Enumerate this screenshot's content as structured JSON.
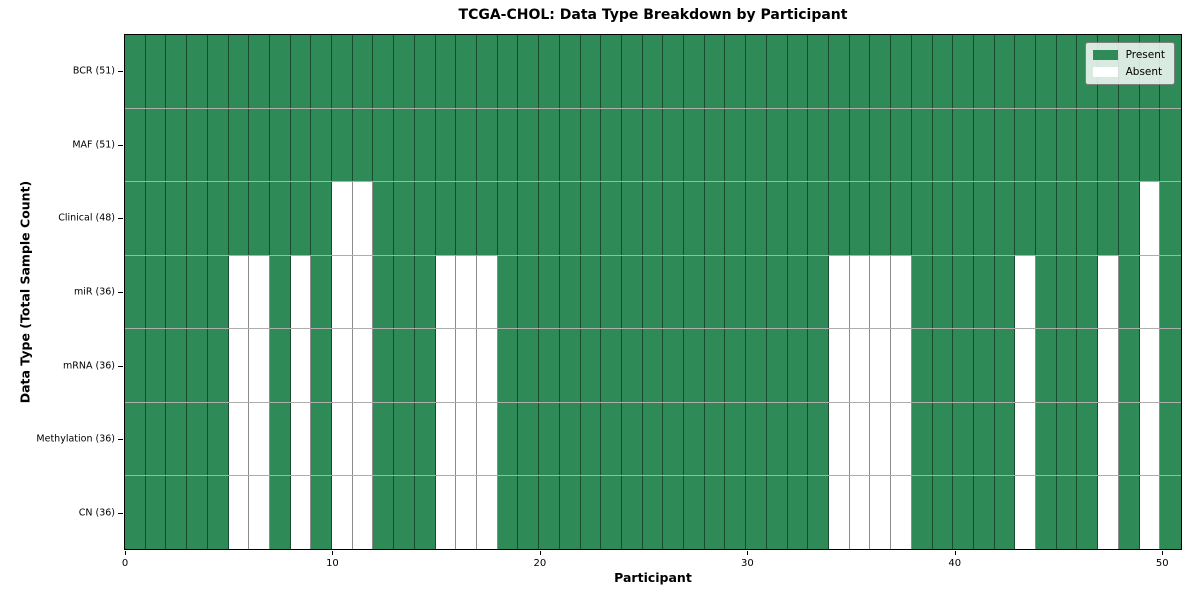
{
  "title": "TCGA-CHOL: Data Type Breakdown by Participant",
  "legend": {
    "present_label": "Present",
    "absent_label": "Absent"
  },
  "axes": {
    "x_label": "Participant",
    "y_label": "Data Type (Total Sample Count)"
  },
  "chart_data": {
    "type": "heatmap",
    "title": "TCGA-CHOL: Data Type Breakdown by Participant",
    "xlabel": "Participant",
    "ylabel": "Data Type (Total Sample Count)",
    "x_range": [
      0,
      51
    ],
    "x_ticks": [
      0,
      10,
      20,
      30,
      40,
      50
    ],
    "n_participants": 51,
    "grid": true,
    "legend_entries": [
      "Present",
      "Absent"
    ],
    "legend_position": "upper right",
    "colors": {
      "present": "#2e8b57",
      "absent": "#ffffff"
    },
    "rows": [
      {
        "label": "BCR (51)",
        "present_count": 51,
        "absent_participants": []
      },
      {
        "label": "MAF (51)",
        "present_count": 51,
        "absent_participants": []
      },
      {
        "label": "Clinical (48)",
        "present_count": 48,
        "absent_participants": [
          10,
          11,
          49
        ]
      },
      {
        "label": "miR (36)",
        "present_count": 36,
        "absent_participants": [
          5,
          6,
          8,
          10,
          11,
          15,
          16,
          17,
          34,
          35,
          36,
          37,
          43,
          47,
          49
        ]
      },
      {
        "label": "mRNA (36)",
        "present_count": 36,
        "absent_participants": [
          5,
          6,
          8,
          10,
          11,
          15,
          16,
          17,
          34,
          35,
          36,
          37,
          43,
          47,
          49
        ]
      },
      {
        "label": "Methylation (36)",
        "present_count": 36,
        "absent_participants": [
          5,
          6,
          8,
          10,
          11,
          15,
          16,
          17,
          34,
          35,
          36,
          37,
          43,
          47,
          49
        ]
      },
      {
        "label": "CN (36)",
        "present_count": 36,
        "absent_participants": [
          5,
          6,
          8,
          10,
          11,
          15,
          16,
          17,
          34,
          35,
          36,
          37,
          43,
          47,
          49
        ]
      }
    ]
  }
}
